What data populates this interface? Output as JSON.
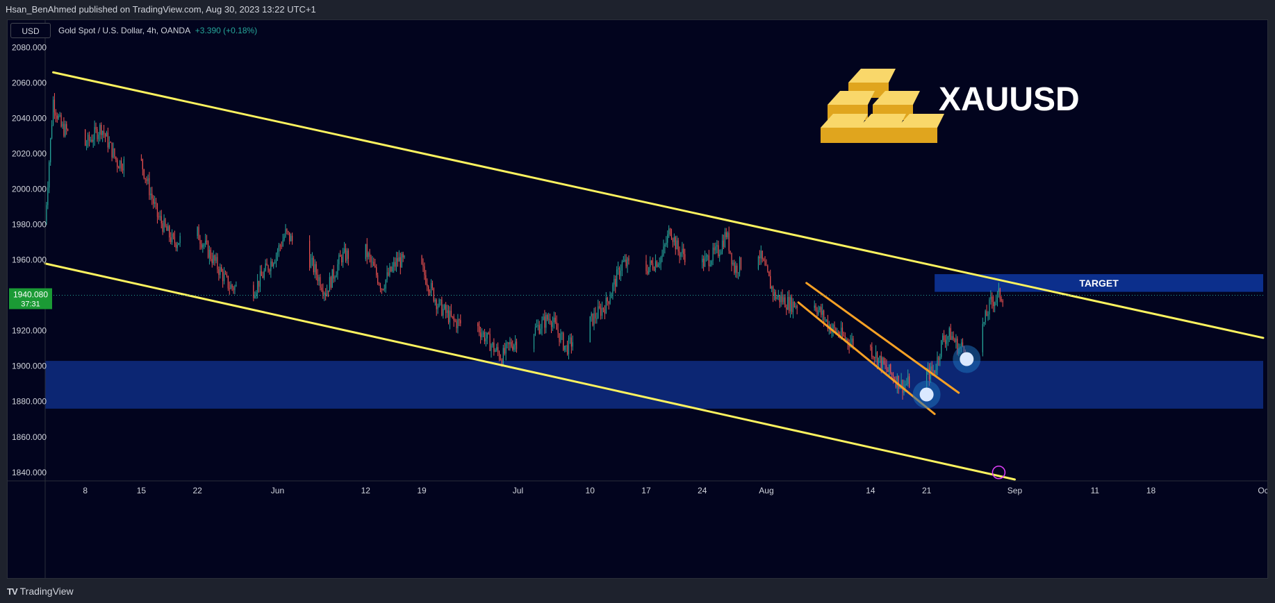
{
  "header": {
    "publisher": "Hsan_BenAhmed published on TradingView.com, Aug 30, 2023 13:22 UTC+1"
  },
  "toolbar": {
    "currency_button": "USD"
  },
  "legend": {
    "symbol": "Gold Spot / U.S. Dollar, 4h, OANDA",
    "change": "+3.390 (+0.18%)"
  },
  "footer": {
    "brand": "TradingView"
  },
  "colors": {
    "background": "#02041e",
    "up": "#26a69a",
    "down": "#ef5350",
    "channel": "#fdf35f",
    "flag": "#f7a125",
    "zone": "#0d2a7c",
    "target": "#0c2f8c"
  },
  "chart_data": {
    "type": "candlestick",
    "symbol": "XAUUSD",
    "timeframe": "4h",
    "watermark": "XAUUSD",
    "last_price": {
      "value": "1940.080",
      "countdown": "37:31"
    },
    "ylim": [
      1836,
      2090
    ],
    "yticks": [
      2080,
      2060,
      2040,
      2020,
      2000,
      1980,
      1960,
      1940,
      1920,
      1900,
      1880,
      1860,
      1840
    ],
    "ytick_labels": [
      "2080.000",
      "2060.000",
      "2040.000",
      "2020.000",
      "2000.000",
      "1980.000",
      "1960.000",
      "1940.000",
      "1920.000",
      "1900.000",
      "1880.000",
      "1860.000",
      "1840.000"
    ],
    "x_start": "2023-05-03",
    "x_end": "2023-10-02",
    "xticks": [
      {
        "date": "2023-05-08",
        "label": "8"
      },
      {
        "date": "2023-05-15",
        "label": "15"
      },
      {
        "date": "2023-05-22",
        "label": "22"
      },
      {
        "date": "2023-06-01",
        "label": "Jun"
      },
      {
        "date": "2023-06-12",
        "label": "12"
      },
      {
        "date": "2023-06-19",
        "label": "19"
      },
      {
        "date": "2023-07-01",
        "label": "Jul"
      },
      {
        "date": "2023-07-10",
        "label": "10"
      },
      {
        "date": "2023-07-17",
        "label": "17"
      },
      {
        "date": "2023-07-24",
        "label": "24"
      },
      {
        "date": "2023-08-01",
        "label": "Aug"
      },
      {
        "date": "2023-08-14",
        "label": "14"
      },
      {
        "date": "2023-08-21",
        "label": "21"
      },
      {
        "date": "2023-09-01",
        "label": "Sep"
      },
      {
        "date": "2023-09-11",
        "label": "11"
      },
      {
        "date": "2023-09-18",
        "label": "18"
      },
      {
        "date": "2023-10-02",
        "label": "Oc"
      }
    ],
    "price_path": [
      [
        "2023-05-03",
        1982
      ],
      [
        "2023-05-04",
        2050
      ],
      [
        "2023-05-05",
        2035
      ],
      [
        "2023-05-08",
        2025
      ],
      [
        "2023-05-10",
        2035
      ],
      [
        "2023-05-12",
        2015
      ],
      [
        "2023-05-15",
        2015
      ],
      [
        "2023-05-17",
        1985
      ],
      [
        "2023-05-19",
        1970
      ],
      [
        "2023-05-22",
        1975
      ],
      [
        "2023-05-24",
        1960
      ],
      [
        "2023-05-26",
        1945
      ],
      [
        "2023-05-29",
        1943
      ],
      [
        "2023-06-01",
        1965
      ],
      [
        "2023-06-02",
        1975
      ],
      [
        "2023-06-05",
        1960
      ],
      [
        "2023-06-07",
        1942
      ],
      [
        "2023-06-09",
        1962
      ],
      [
        "2023-06-12",
        1965
      ],
      [
        "2023-06-14",
        1945
      ],
      [
        "2023-06-16",
        1960
      ],
      [
        "2023-06-19",
        1955
      ],
      [
        "2023-06-21",
        1935
      ],
      [
        "2023-06-23",
        1925
      ],
      [
        "2023-06-26",
        1922
      ],
      [
        "2023-06-28",
        1910
      ],
      [
        "2023-06-29",
        1905
      ],
      [
        "2023-06-30",
        1912
      ],
      [
        "2023-07-03",
        1920
      ],
      [
        "2023-07-05",
        1928
      ],
      [
        "2023-07-07",
        1910
      ],
      [
        "2023-07-10",
        1925
      ],
      [
        "2023-07-12",
        1935
      ],
      [
        "2023-07-14",
        1958
      ],
      [
        "2023-07-17",
        1955
      ],
      [
        "2023-07-19",
        1962
      ],
      [
        "2023-07-20",
        1978
      ],
      [
        "2023-07-21",
        1965
      ],
      [
        "2023-07-24",
        1958
      ],
      [
        "2023-07-26",
        1965
      ],
      [
        "2023-07-27",
        1975
      ],
      [
        "2023-07-28",
        1955
      ],
      [
        "2023-07-31",
        1965
      ],
      [
        "2023-08-02",
        1940
      ],
      [
        "2023-08-04",
        1935
      ],
      [
        "2023-08-07",
        1935
      ],
      [
        "2023-08-09",
        1922
      ],
      [
        "2023-08-11",
        1915
      ],
      [
        "2023-08-14",
        1910
      ],
      [
        "2023-08-16",
        1898
      ],
      [
        "2023-08-18",
        1889
      ],
      [
        "2023-08-21",
        1895
      ],
      [
        "2023-08-22",
        1898
      ],
      [
        "2023-08-23",
        1915
      ],
      [
        "2023-08-24",
        1918
      ],
      [
        "2023-08-25",
        1910
      ],
      [
        "2023-08-27",
        1915
      ],
      [
        "2023-08-28",
        1922
      ],
      [
        "2023-08-29",
        1936
      ],
      [
        "2023-08-30",
        1940
      ]
    ],
    "drawings": {
      "channel_upper": [
        [
          "2023-05-04",
          2066
        ],
        [
          "2023-10-02",
          1916
        ]
      ],
      "channel_lower": [
        [
          "2023-05-03",
          1958
        ],
        [
          "2023-09-01",
          1836
        ]
      ],
      "flag_upper": [
        [
          "2023-08-06",
          1947
        ],
        [
          "2023-08-25",
          1885
        ]
      ],
      "flag_lower": [
        [
          "2023-08-05",
          1936
        ],
        [
          "2023-08-22",
          1873
        ]
      ],
      "support_zone": {
        "from": "2023-05-03",
        "to": "2023-10-02",
        "low": 1876,
        "high": 1903
      },
      "target_zone": {
        "from": "2023-08-22",
        "to": "2023-10-02",
        "low": 1942,
        "high": 1952,
        "label": "TARGET"
      },
      "markers": [
        {
          "date": "2023-08-21",
          "price": 1884
        },
        {
          "date": "2023-08-26",
          "price": 1904
        }
      ],
      "lightning_marker": {
        "date": "2023-08-30",
        "price": 1840
      }
    },
    "grid": false,
    "legend_position": "top-left"
  }
}
